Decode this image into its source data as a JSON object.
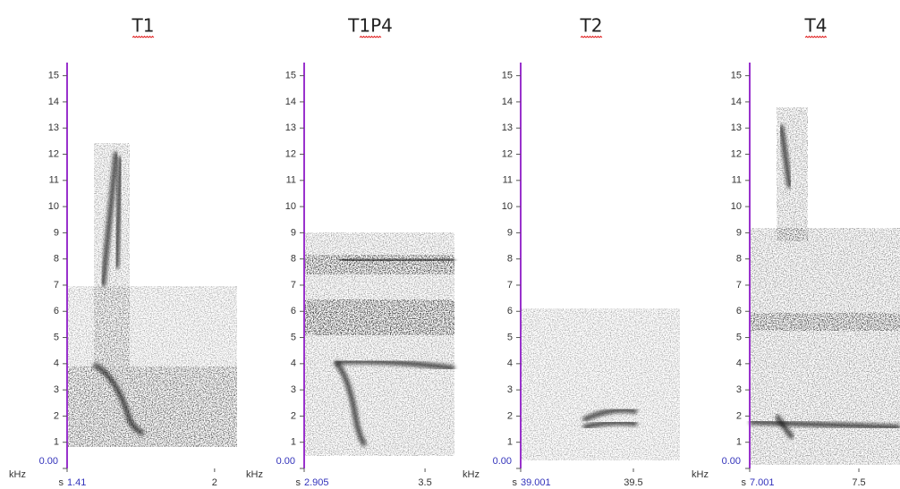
{
  "chart_data": [
    {
      "type": "spectrogram",
      "title": "T1",
      "ylabel": "kHz",
      "xlabel": "s",
      "ylim": [
        0,
        15.5
      ],
      "yticks": [
        {
          "value": 0,
          "label": "0.00"
        },
        1,
        2,
        3,
        4,
        5,
        6,
        7,
        8,
        9,
        10,
        11,
        12,
        13,
        14,
        15
      ],
      "xlim": [
        1.41,
        2.09
      ],
      "xticks": [
        1.41,
        2
      ]
    },
    {
      "type": "spectrogram",
      "title": "T1P4",
      "ylabel": "kHz",
      "xlabel": "s",
      "ylim": [
        0,
        15.5
      ],
      "yticks": [
        {
          "value": 0,
          "label": "0.00"
        },
        1,
        2,
        3,
        4,
        5,
        6,
        7,
        8,
        9,
        10,
        11,
        12,
        13,
        14,
        15
      ],
      "xlim": [
        2.905,
        3.645
      ],
      "xticks": [
        2.905,
        3.5
      ]
    },
    {
      "type": "spectrogram",
      "title": "T2",
      "ylabel": "kHz",
      "xlabel": "s",
      "ylim": [
        0,
        15.5
      ],
      "yticks": [
        {
          "value": 0,
          "label": "0.00"
        },
        1,
        2,
        3,
        4,
        5,
        6,
        7,
        8,
        9,
        10,
        11,
        12,
        13,
        14,
        15
      ],
      "xlim": [
        39.001,
        39.706
      ],
      "xticks": [
        39.001,
        39.5
      ]
    },
    {
      "type": "spectrogram",
      "title": "T4",
      "ylabel": "kHz",
      "xlabel": "s",
      "ylim": [
        0,
        15.5
      ],
      "yticks": [
        {
          "value": 0,
          "label": "0.00"
        },
        1,
        2,
        3,
        4,
        5,
        6,
        7,
        8,
        9,
        10,
        11,
        12,
        13,
        14,
        15
      ],
      "xlim": [
        7.001,
        7.688
      ],
      "xticks": [
        7.001,
        7.5
      ]
    }
  ]
}
